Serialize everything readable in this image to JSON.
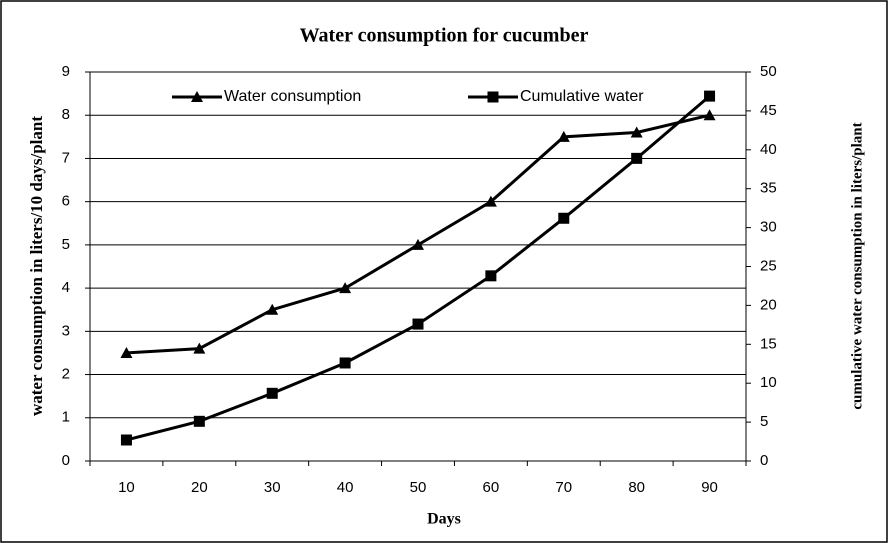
{
  "chart_data": {
    "type": "line",
    "title": "Water consumption for cucumber",
    "x_label": "Days",
    "y_label": "water consumption in liters/10 days/plant",
    "y2_label": "cumulative water consumption in liters/plant",
    "categories": [
      10,
      20,
      30,
      40,
      50,
      60,
      70,
      80,
      90
    ],
    "series": [
      {
        "name": "Water consumption",
        "color": "#000000",
        "marker": "triangle",
        "values": [
          2.5,
          2.6,
          3.5,
          4.0,
          5.0,
          6.0,
          7.5,
          7.6,
          8.0
        ]
      },
      {
        "name": "Cumulative water",
        "color": "#000000",
        "marker": "square",
        "axis": "y2",
        "values": [
          2.7,
          5.1,
          8.7,
          12.6,
          17.6,
          23.8,
          31.2,
          38.9,
          46.9
        ]
      }
    ],
    "ylim": [
      0,
      9
    ],
    "yticks": [
      0,
      1,
      2,
      3,
      4,
      5,
      6,
      7,
      8,
      9
    ],
    "y2lim": [
      0,
      50
    ],
    "y2ticks": [
      0,
      5,
      10,
      15,
      20,
      25,
      30,
      35,
      40,
      45,
      50
    ],
    "grid": true,
    "legend": "top"
  }
}
